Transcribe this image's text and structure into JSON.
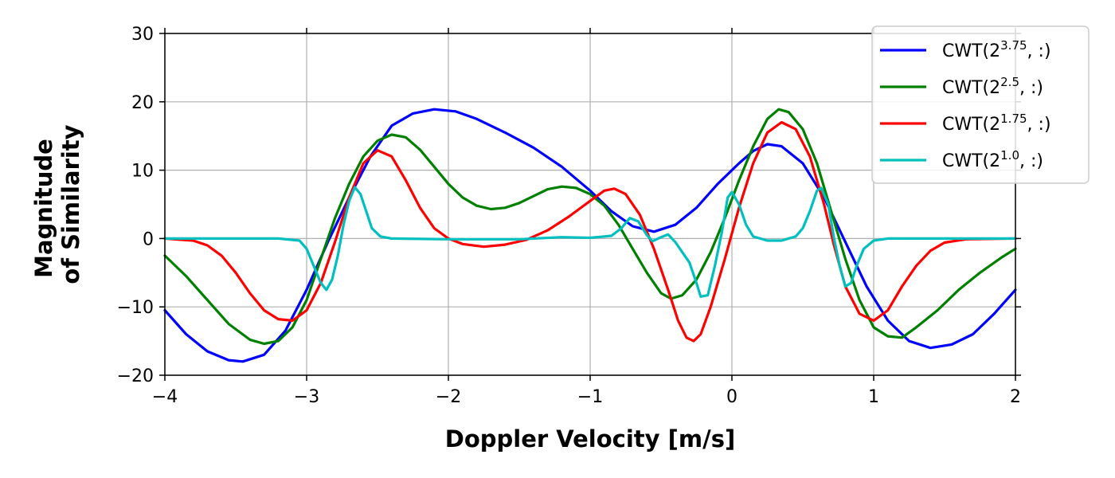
{
  "chart_data": {
    "type": "line",
    "title": "",
    "xlabel": "Doppler Velocity [m/s]",
    "ylabel_line1": "Magnitude",
    "ylabel_line2": "of Similarity",
    "xlim": [
      -4,
      2
    ],
    "ylim": [
      -20,
      30
    ],
    "xticks": [
      -4,
      -3,
      -2,
      -1,
      0,
      1,
      2
    ],
    "xtick_labels": [
      "−4",
      "−3",
      "−2",
      "−1",
      "0",
      "1",
      "2"
    ],
    "yticks": [
      -20,
      -10,
      0,
      10,
      20,
      30
    ],
    "ytick_labels": [
      "−20",
      "−10",
      "0",
      "10",
      "20",
      "30"
    ],
    "grid": true,
    "legend_position": "top-right",
    "series": [
      {
        "name": "CWT(2^3.75, :)",
        "legend_base": "CWT(2",
        "legend_exp": "3.75",
        "legend_tail": ", :)",
        "color": "#0000ff",
        "points": [
          [
            -4.0,
            -10.5
          ],
          [
            -3.85,
            -14.0
          ],
          [
            -3.7,
            -16.5
          ],
          [
            -3.55,
            -17.8
          ],
          [
            -3.45,
            -18.0
          ],
          [
            -3.3,
            -17.0
          ],
          [
            -3.15,
            -13.5
          ],
          [
            -3.0,
            -7.5
          ],
          [
            -2.85,
            -0.5
          ],
          [
            -2.7,
            6.0
          ],
          [
            -2.55,
            12.0
          ],
          [
            -2.4,
            16.5
          ],
          [
            -2.25,
            18.3
          ],
          [
            -2.1,
            18.9
          ],
          [
            -1.95,
            18.6
          ],
          [
            -1.8,
            17.5
          ],
          [
            -1.6,
            15.5
          ],
          [
            -1.4,
            13.3
          ],
          [
            -1.2,
            10.5
          ],
          [
            -1.0,
            7.0
          ],
          [
            -0.85,
            4.0
          ],
          [
            -0.7,
            1.8
          ],
          [
            -0.55,
            1.0
          ],
          [
            -0.4,
            2.0
          ],
          [
            -0.25,
            4.5
          ],
          [
            -0.1,
            8.0
          ],
          [
            0.05,
            11.0
          ],
          [
            0.15,
            12.8
          ],
          [
            0.25,
            13.8
          ],
          [
            0.35,
            13.5
          ],
          [
            0.5,
            11.0
          ],
          [
            0.65,
            6.0
          ],
          [
            0.8,
            -0.5
          ],
          [
            0.95,
            -7.0
          ],
          [
            1.1,
            -12.0
          ],
          [
            1.25,
            -15.0
          ],
          [
            1.4,
            -16.0
          ],
          [
            1.55,
            -15.5
          ],
          [
            1.7,
            -14.0
          ],
          [
            1.85,
            -11.0
          ],
          [
            2.0,
            -7.5
          ]
        ]
      },
      {
        "name": "CWT(2^2.5, :)",
        "legend_base": "CWT(2",
        "legend_exp": "2.5",
        "legend_tail": ", :)",
        "color": "#008000",
        "points": [
          [
            -4.0,
            -2.5
          ],
          [
            -3.85,
            -5.5
          ],
          [
            -3.7,
            -9.0
          ],
          [
            -3.55,
            -12.5
          ],
          [
            -3.4,
            -14.8
          ],
          [
            -3.3,
            -15.4
          ],
          [
            -3.2,
            -15.0
          ],
          [
            -3.1,
            -13.0
          ],
          [
            -3.0,
            -9.0
          ],
          [
            -2.9,
            -3.0
          ],
          [
            -2.8,
            3.0
          ],
          [
            -2.7,
            8.0
          ],
          [
            -2.6,
            12.0
          ],
          [
            -2.5,
            14.3
          ],
          [
            -2.4,
            15.2
          ],
          [
            -2.3,
            14.8
          ],
          [
            -2.2,
            13.0
          ],
          [
            -2.1,
            10.5
          ],
          [
            -2.0,
            8.0
          ],
          [
            -1.9,
            6.0
          ],
          [
            -1.8,
            4.8
          ],
          [
            -1.7,
            4.3
          ],
          [
            -1.6,
            4.5
          ],
          [
            -1.5,
            5.2
          ],
          [
            -1.4,
            6.2
          ],
          [
            -1.3,
            7.2
          ],
          [
            -1.2,
            7.6
          ],
          [
            -1.1,
            7.4
          ],
          [
            -1.0,
            6.5
          ],
          [
            -0.9,
            4.8
          ],
          [
            -0.8,
            2.0
          ],
          [
            -0.7,
            -1.5
          ],
          [
            -0.6,
            -5.0
          ],
          [
            -0.5,
            -8.0
          ],
          [
            -0.43,
            -8.8
          ],
          [
            -0.35,
            -8.3
          ],
          [
            -0.25,
            -6.0
          ],
          [
            -0.15,
            -2.0
          ],
          [
            -0.05,
            3.0
          ],
          [
            0.05,
            8.5
          ],
          [
            0.15,
            13.5
          ],
          [
            0.25,
            17.5
          ],
          [
            0.33,
            18.9
          ],
          [
            0.4,
            18.5
          ],
          [
            0.5,
            16.0
          ],
          [
            0.6,
            11.0
          ],
          [
            0.7,
            4.0
          ],
          [
            0.8,
            -3.0
          ],
          [
            0.9,
            -9.0
          ],
          [
            1.0,
            -13.0
          ],
          [
            1.1,
            -14.3
          ],
          [
            1.2,
            -14.5
          ],
          [
            1.3,
            -13.0
          ],
          [
            1.45,
            -10.5
          ],
          [
            1.6,
            -7.5
          ],
          [
            1.75,
            -5.0
          ],
          [
            1.9,
            -2.8
          ],
          [
            2.0,
            -1.5
          ]
        ]
      },
      {
        "name": "CWT(2^1.75, :)",
        "legend_base": "CWT(2",
        "legend_exp": "1.75",
        "legend_tail": ", :)",
        "color": "#ff0000",
        "points": [
          [
            -4.0,
            0.0
          ],
          [
            -3.8,
            -0.3
          ],
          [
            -3.7,
            -1.0
          ],
          [
            -3.6,
            -2.5
          ],
          [
            -3.5,
            -5.0
          ],
          [
            -3.4,
            -8.0
          ],
          [
            -3.3,
            -10.5
          ],
          [
            -3.2,
            -11.8
          ],
          [
            -3.1,
            -12.0
          ],
          [
            -3.0,
            -10.5
          ],
          [
            -2.9,
            -6.5
          ],
          [
            -2.8,
            -0.5
          ],
          [
            -2.7,
            6.0
          ],
          [
            -2.6,
            11.0
          ],
          [
            -2.5,
            12.9
          ],
          [
            -2.4,
            12.0
          ],
          [
            -2.3,
            8.5
          ],
          [
            -2.2,
            4.5
          ],
          [
            -2.1,
            1.5
          ],
          [
            -2.0,
            0.0
          ],
          [
            -1.9,
            -0.8
          ],
          [
            -1.75,
            -1.2
          ],
          [
            -1.6,
            -0.9
          ],
          [
            -1.45,
            -0.2
          ],
          [
            -1.3,
            1.2
          ],
          [
            -1.15,
            3.2
          ],
          [
            -1.0,
            5.5
          ],
          [
            -0.9,
            7.0
          ],
          [
            -0.83,
            7.3
          ],
          [
            -0.75,
            6.5
          ],
          [
            -0.65,
            3.5
          ],
          [
            -0.55,
            -1.5
          ],
          [
            -0.45,
            -7.5
          ],
          [
            -0.38,
            -12.0
          ],
          [
            -0.32,
            -14.5
          ],
          [
            -0.27,
            -15.0
          ],
          [
            -0.22,
            -14.0
          ],
          [
            -0.15,
            -10.0
          ],
          [
            -0.05,
            -3.0
          ],
          [
            0.05,
            4.5
          ],
          [
            0.15,
            11.0
          ],
          [
            0.25,
            15.5
          ],
          [
            0.35,
            17.0
          ],
          [
            0.45,
            16.0
          ],
          [
            0.55,
            12.0
          ],
          [
            0.65,
            5.0
          ],
          [
            0.72,
            -1.0
          ],
          [
            0.8,
            -7.0
          ],
          [
            0.9,
            -11.0
          ],
          [
            1.0,
            -12.0
          ],
          [
            1.1,
            -10.5
          ],
          [
            1.2,
            -7.0
          ],
          [
            1.3,
            -4.0
          ],
          [
            1.4,
            -1.8
          ],
          [
            1.5,
            -0.6
          ],
          [
            1.65,
            -0.1
          ],
          [
            2.0,
            0.0
          ]
        ]
      },
      {
        "name": "CWT(2^1.0, :)",
        "legend_base": "CWT(2",
        "legend_exp": "1.0",
        "legend_tail": ", :)",
        "color": "#00bfbf",
        "points": [
          [
            -4.0,
            0.0
          ],
          [
            -3.2,
            0.0
          ],
          [
            -3.05,
            -0.3
          ],
          [
            -3.0,
            -1.5
          ],
          [
            -2.95,
            -4.0
          ],
          [
            -2.9,
            -6.5
          ],
          [
            -2.86,
            -7.5
          ],
          [
            -2.82,
            -6.0
          ],
          [
            -2.78,
            -2.5
          ],
          [
            -2.74,
            2.0
          ],
          [
            -2.7,
            5.5
          ],
          [
            -2.66,
            7.5
          ],
          [
            -2.62,
            6.5
          ],
          [
            -2.58,
            4.0
          ],
          [
            -2.54,
            1.5
          ],
          [
            -2.48,
            0.3
          ],
          [
            -2.4,
            0.0
          ],
          [
            -2.0,
            -0.1
          ],
          [
            -1.5,
            -0.1
          ],
          [
            -1.2,
            0.2
          ],
          [
            -1.0,
            0.1
          ],
          [
            -0.85,
            0.4
          ],
          [
            -0.78,
            1.5
          ],
          [
            -0.72,
            3.0
          ],
          [
            -0.66,
            2.5
          ],
          [
            -0.6,
            0.5
          ],
          [
            -0.56,
            -0.4
          ],
          [
            -0.5,
            0.2
          ],
          [
            -0.45,
            0.6
          ],
          [
            -0.4,
            -0.5
          ],
          [
            -0.35,
            -2.0
          ],
          [
            -0.3,
            -3.5
          ],
          [
            -0.25,
            -6.5
          ],
          [
            -0.22,
            -8.5
          ],
          [
            -0.17,
            -8.3
          ],
          [
            -0.12,
            -4.0
          ],
          [
            -0.07,
            1.0
          ],
          [
            -0.03,
            6.0
          ],
          [
            0.0,
            6.8
          ],
          [
            0.05,
            5.0
          ],
          [
            0.1,
            2.0
          ],
          [
            0.15,
            0.3
          ],
          [
            0.25,
            -0.3
          ],
          [
            0.35,
            -0.3
          ],
          [
            0.45,
            0.3
          ],
          [
            0.5,
            1.5
          ],
          [
            0.55,
            4.0
          ],
          [
            0.6,
            7.0
          ],
          [
            0.63,
            7.4
          ],
          [
            0.68,
            5.0
          ],
          [
            0.72,
            0.0
          ],
          [
            0.76,
            -4.0
          ],
          [
            0.8,
            -7.0
          ],
          [
            0.84,
            -6.5
          ],
          [
            0.88,
            -4.0
          ],
          [
            0.93,
            -1.5
          ],
          [
            1.0,
            -0.3
          ],
          [
            1.1,
            0.0
          ],
          [
            2.0,
            0.0
          ]
        ]
      }
    ]
  }
}
